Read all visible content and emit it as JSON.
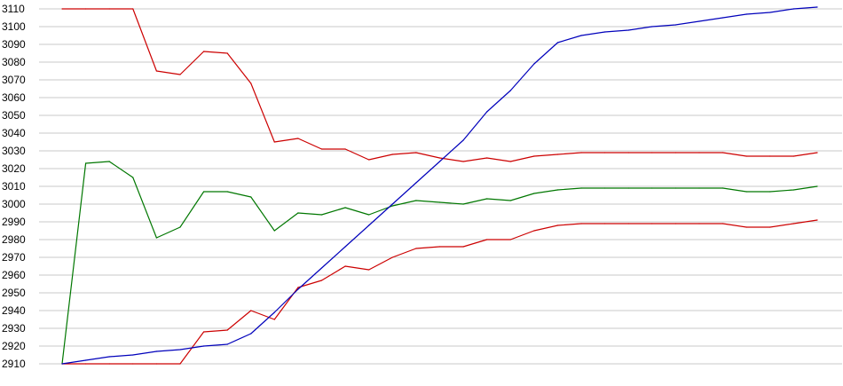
{
  "chart_data": {
    "type": "line",
    "title": "",
    "xlabel": "",
    "ylabel": "",
    "grid": true,
    "legend": "none",
    "ylim": [
      2910,
      3110
    ],
    "y_ticks": [
      "2910",
      "2920",
      "2930",
      "2940",
      "2950",
      "2960",
      "2970",
      "2980",
      "2990",
      "3000",
      "3010",
      "3020",
      "3030",
      "3040",
      "3050",
      "3060",
      "3070",
      "3080",
      "3090",
      "3100",
      "3110"
    ],
    "x": [
      1,
      2,
      3,
      4,
      5,
      6,
      7,
      8,
      9,
      10,
      11,
      12,
      13,
      14,
      15,
      16,
      17,
      18,
      19,
      20,
      21,
      22,
      23,
      24,
      25,
      26,
      27,
      28,
      29,
      30,
      31,
      32,
      33
    ],
    "series": [
      {
        "color": "#cc0000",
        "values": [
          3110,
          3110,
          3110,
          3110,
          3075,
          3073,
          3086,
          3085,
          3068,
          3035,
          3037,
          3031,
          3031,
          3025,
          3028,
          3029,
          3026,
          3024,
          3026,
          3024,
          3027,
          3028,
          3029,
          3029,
          3029,
          3029,
          3029,
          3029,
          3029,
          3027,
          3027,
          3027,
          3029
        ]
      },
      {
        "color": "#007700",
        "values": [
          2910,
          3023,
          3024,
          3015,
          2981,
          2987,
          3007,
          3007,
          3004,
          2985,
          2995,
          2994,
          2998,
          2994,
          2999,
          3002,
          3001,
          3000,
          3003,
          3002,
          3006,
          3008,
          3009,
          3009,
          3009,
          3009,
          3009,
          3009,
          3009,
          3007,
          3007,
          3008,
          3010
        ]
      },
      {
        "color": "#cc0000",
        "values": [
          2910,
          2910,
          2910,
          2910,
          2910,
          2910,
          2928,
          2929,
          2940,
          2935,
          2953,
          2957,
          2965,
          2963,
          2970,
          2975,
          2976,
          2976,
          2980,
          2980,
          2985,
          2988,
          2989,
          2989,
          2989,
          2989,
          2989,
          2989,
          2989,
          2987,
          2987,
          2989,
          2991
        ]
      },
      {
        "color": "#0000bb",
        "values": [
          2910,
          2912,
          2914,
          2915,
          2917,
          2918,
          2920,
          2921,
          2927,
          2939,
          2952,
          2964,
          2976,
          2988,
          3000,
          3012,
          3024,
          3036,
          3052,
          3064,
          3079,
          3091,
          3095,
          3097,
          3098,
          3100,
          3101,
          3103,
          3105,
          3107,
          3108,
          3110,
          3111
        ]
      }
    ]
  }
}
